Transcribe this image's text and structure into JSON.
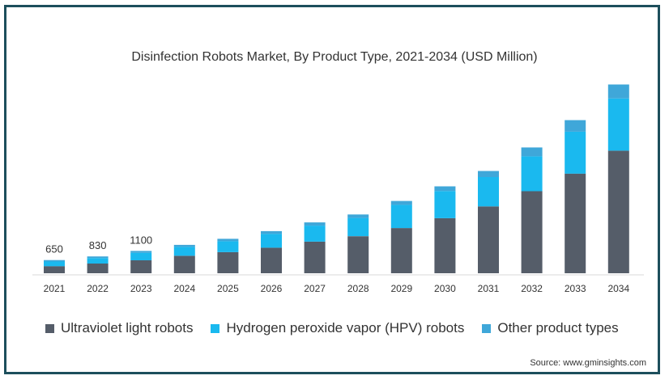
{
  "chart_data": {
    "type": "bar",
    "stacked": true,
    "title": "Disinfection Robots Market, By Product Type, 2021-2034 (USD Million)",
    "categories": [
      "2021",
      "2022",
      "2023",
      "2024",
      "2025",
      "2026",
      "2027",
      "2028",
      "2029",
      "2030",
      "2031",
      "2032",
      "2033",
      "2034"
    ],
    "series": [
      {
        "name": "Ultraviolet light robots",
        "color": "#555d69",
        "values": [
          350,
          480,
          640,
          860,
          1040,
          1260,
          1560,
          1830,
          2230,
          2720,
          3300,
          4050,
          4920,
          6050
        ]
      },
      {
        "name": "Hydrogen peroxide vapor (HPV) robots",
        "color": "#1ab9ef",
        "values": [
          230,
          270,
          370,
          440,
          540,
          680,
          790,
          900,
          1150,
          1340,
          1450,
          1720,
          2070,
          2580
        ]
      },
      {
        "name": "Other product types",
        "color": "#3fa7d9",
        "values": [
          70,
          80,
          90,
          100,
          120,
          140,
          160,
          170,
          190,
          230,
          300,
          440,
          570,
          690
        ]
      }
    ],
    "data_labels": [
      {
        "category": "2021",
        "text": "650"
      },
      {
        "category": "2022",
        "text": "830"
      },
      {
        "category": "2023",
        "text": "1100"
      }
    ],
    "ylim": [
      0,
      9500
    ],
    "grid": false,
    "legend_position": "bottom",
    "xlabel": "",
    "ylabel": ""
  },
  "source": "Source: www.gminsights.com"
}
